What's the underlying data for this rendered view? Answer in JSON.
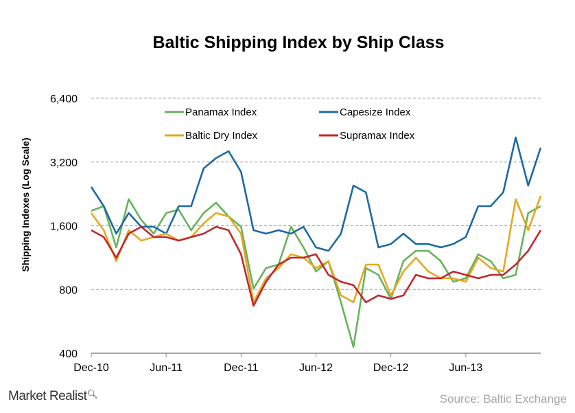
{
  "chart_data": {
    "type": "line",
    "title": "Baltic Shipping Index by Ship Class",
    "ylabel": "Shipping Indexes (Log Scale)",
    "xlabel": "",
    "y_scale": "log2",
    "ylim": [
      400,
      6400
    ],
    "y_ticks": [
      400,
      800,
      1600,
      3200,
      6400
    ],
    "y_tick_labels": [
      "400",
      "800",
      "1,600",
      "3,200",
      "6,400"
    ],
    "x_ticks": [
      "2010-12",
      "2011-06",
      "2011-12",
      "2012-06",
      "2012-12",
      "2013-06"
    ],
    "x_tick_labels": [
      "Dec-10",
      "Jun-11",
      "Dec-11",
      "Jun-12",
      "Dec-12",
      "Jun-13"
    ],
    "xlim": [
      "2010-12",
      "2013-12"
    ],
    "grid": "horizontal dashed",
    "legend_placement": "top",
    "x": [
      "2010-12",
      "2011-01",
      "2011-02",
      "2011-03",
      "2011-04",
      "2011-05",
      "2011-06",
      "2011-07",
      "2011-08",
      "2011-09",
      "2011-10",
      "2011-11",
      "2011-12",
      "2012-01",
      "2012-02",
      "2012-03",
      "2012-04",
      "2012-05",
      "2012-06",
      "2012-07",
      "2012-08",
      "2012-09",
      "2012-10",
      "2012-11",
      "2012-12",
      "2013-01",
      "2013-02",
      "2013-03",
      "2013-04",
      "2013-05",
      "2013-06",
      "2013-07",
      "2013-08",
      "2013-09",
      "2013-10",
      "2013-11",
      "2013-12"
    ],
    "series": [
      {
        "name": "Panamax Index",
        "color": "#66b35a",
        "values": [
          1880,
          1980,
          1264,
          2135,
          1705,
          1468,
          1837,
          1907,
          1524,
          1837,
          2055,
          1770,
          1582,
          807,
          1010,
          1049,
          1582,
          1264,
          973,
          1089,
          696,
          428,
          1010,
          938,
          722,
          1089,
          1218,
          1218,
          1089,
          870,
          903,
          1173,
          1089,
          903,
          938,
          1837,
          1980
        ]
      },
      {
        "name": "Capesize Index",
        "color": "#1c6aa3",
        "values": [
          2440,
          1980,
          1468,
          1837,
          1582,
          1582,
          1468,
          1980,
          1980,
          2985,
          3340,
          3600,
          2875,
          1524,
          1468,
          1524,
          1468,
          1582,
          1264,
          1218,
          1468,
          2478,
          2300,
          1264,
          1312,
          1468,
          1312,
          1312,
          1264,
          1312,
          1414,
          1980,
          1980,
          2300,
          4180,
          2478,
          3740
        ]
      },
      {
        "name": "Baltic Dry Index",
        "color": "#e5a820",
        "values": [
          1837,
          1524,
          1089,
          1524,
          1362,
          1414,
          1468,
          1362,
          1414,
          1643,
          1837,
          1770,
          1468,
          696,
          903,
          1010,
          1173,
          1130,
          1010,
          1089,
          750,
          696,
          1049,
          1049,
          750,
          973,
          1130,
          973,
          903,
          903,
          870,
          1130,
          1010,
          973,
          2135,
          1524,
          2215
        ]
      },
      {
        "name": "Supramax Index",
        "color": "#c1272d",
        "values": [
          1524,
          1414,
          1130,
          1468,
          1582,
          1414,
          1414,
          1362,
          1414,
          1468,
          1582,
          1524,
          1173,
          670,
          870,
          1049,
          1130,
          1130,
          1173,
          938,
          870,
          838,
          696,
          750,
          722,
          750,
          938,
          903,
          903,
          973,
          938,
          903,
          938,
          938,
          1049,
          1218,
          1524
        ]
      }
    ]
  },
  "footer": {
    "logo": "Market Realist",
    "source": "Source: Baltic Exchange"
  }
}
